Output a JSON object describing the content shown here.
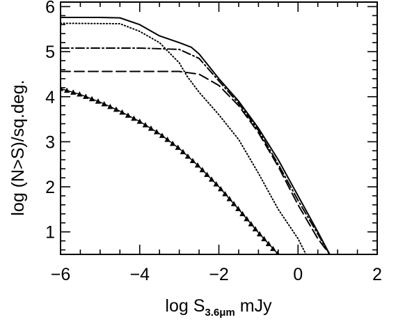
{
  "chart_data": {
    "type": "line",
    "title": "",
    "xlabel": {
      "prefix": "log S",
      "subscript": "3.6μm",
      "suffix": " mJy"
    },
    "ylabel": "log (N>S)/sq.deg.",
    "xlim": [
      -6,
      2
    ],
    "ylim": [
      0.5,
      6.1
    ],
    "x_ticks": [
      {
        "value": -6,
        "label": "−6"
      },
      {
        "value": -4,
        "label": "−4"
      },
      {
        "value": -2,
        "label": "−2"
      },
      {
        "value": 0,
        "label": "0"
      },
      {
        "value": 2,
        "label": "2"
      }
    ],
    "y_ticks": [
      {
        "value": 1,
        "label": "1"
      },
      {
        "value": 2,
        "label": "2"
      },
      {
        "value": 3,
        "label": "3"
      },
      {
        "value": 4,
        "label": "4"
      },
      {
        "value": 5,
        "label": "5"
      },
      {
        "value": 6,
        "label": "6"
      }
    ],
    "grid": false,
    "legend": "none",
    "line_color": "#000000",
    "series": [
      {
        "style": "solid",
        "marker": "none",
        "points": [
          [
            -6,
            5.76
          ],
          [
            -5,
            5.76
          ],
          [
            -4.5,
            5.75
          ],
          [
            -4.0,
            5.6
          ],
          [
            -3.5,
            5.35
          ],
          [
            -3.0,
            5.2
          ],
          [
            -2.7,
            5.1
          ],
          [
            -2.5,
            4.95
          ],
          [
            -2.0,
            4.4
          ],
          [
            -1.5,
            3.9
          ],
          [
            -1.0,
            3.3
          ],
          [
            -0.5,
            2.6
          ],
          [
            0.0,
            1.8
          ],
          [
            0.5,
            1.0
          ],
          [
            0.8,
            0.5
          ]
        ]
      },
      {
        "style": "dotted",
        "marker": "none",
        "points": [
          [
            -6,
            5.63
          ],
          [
            -4.5,
            5.62
          ],
          [
            -4.0,
            5.45
          ],
          [
            -3.5,
            5.2
          ],
          [
            -3.0,
            4.75
          ],
          [
            -2.8,
            4.45
          ],
          [
            -2.5,
            4.1
          ],
          [
            -2.0,
            3.6
          ],
          [
            -1.5,
            3.05
          ],
          [
            -1.0,
            2.3
          ],
          [
            -0.5,
            1.5
          ],
          [
            0.0,
            0.85
          ],
          [
            0.2,
            0.5
          ]
        ]
      },
      {
        "style": "dashdot",
        "marker": "none",
        "points": [
          [
            -6,
            5.08
          ],
          [
            -4.0,
            5.08
          ],
          [
            -3.0,
            5.05
          ],
          [
            -2.5,
            4.85
          ],
          [
            -2.0,
            4.35
          ],
          [
            -1.5,
            3.85
          ],
          [
            -1.0,
            3.25
          ],
          [
            -0.5,
            2.5
          ],
          [
            0.0,
            1.7
          ],
          [
            0.5,
            0.95
          ],
          [
            0.8,
            0.5
          ]
        ]
      },
      {
        "style": "dashed",
        "marker": "none",
        "points": [
          [
            -6,
            4.56
          ],
          [
            -3.0,
            4.56
          ],
          [
            -2.5,
            4.5
          ],
          [
            -2.0,
            4.25
          ],
          [
            -1.5,
            3.8
          ],
          [
            -1.0,
            3.2
          ],
          [
            -0.5,
            2.45
          ],
          [
            0.0,
            1.6
          ],
          [
            0.5,
            0.85
          ],
          [
            0.8,
            0.5
          ]
        ]
      },
      {
        "style": "solid",
        "marker": "triangle",
        "points": [
          [
            -6,
            4.18
          ],
          [
            -5.5,
            4.05
          ],
          [
            -5.0,
            3.88
          ],
          [
            -4.5,
            3.68
          ],
          [
            -4.0,
            3.45
          ],
          [
            -3.5,
            3.18
          ],
          [
            -3.0,
            2.85
          ],
          [
            -2.5,
            2.45
          ],
          [
            -2.0,
            2.0
          ],
          [
            -1.5,
            1.5
          ],
          [
            -1.0,
            0.98
          ],
          [
            -0.5,
            0.5
          ]
        ]
      }
    ]
  }
}
